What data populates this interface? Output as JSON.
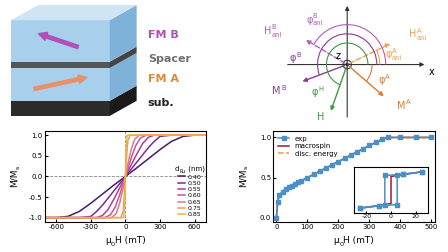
{
  "schematic": {
    "layers": [
      {
        "label": "FM B",
        "color": "#b050b8"
      },
      {
        "label": "Spacer",
        "color": "#707070"
      },
      {
        "label": "FM A",
        "color": "#e0883a"
      },
      {
        "label": "sub.",
        "color": "#222222"
      }
    ]
  },
  "angle_diagram": {
    "axes": [
      "x",
      "z"
    ],
    "labels": [
      {
        "text": [
          "H",
          {
            "sup": "B",
            "sub": "ani"
          }
        ],
        "color": "#b45cc0"
      },
      {
        "text": [
          "φ",
          {
            "sup": "B",
            "sub": "ani"
          }
        ],
        "color": "#b45cc0"
      },
      {
        "text": [
          "φ",
          {
            "sup": "H"
          }
        ],
        "color": "#3c9a46"
      },
      {
        "text": [
          "φ",
          {
            "sup": "B"
          }
        ],
        "color": "#8a3a98"
      },
      {
        "text": [
          "φ",
          {
            "sup": "A"
          }
        ],
        "color": "#e07a30"
      },
      {
        "text": [
          "H",
          {
            "sup": "A",
            "sub": "ani"
          }
        ],
        "color": "#f0a050"
      },
      {
        "text": [
          "φ",
          {
            "sup": "A",
            "sub": "ani"
          }
        ],
        "color": "#f0a050"
      },
      {
        "text": [
          "M",
          {
            "sup": "B"
          }
        ],
        "color": "#8a3a98"
      },
      {
        "text": [
          "H"
        ],
        "color": "#3c9a46"
      },
      {
        "text": [
          "M",
          {
            "sup": "A"
          }
        ],
        "color": "#e07a30"
      }
    ]
  },
  "chart_data": [
    {
      "type": "line",
      "x_label": [
        "μ",
        {
          "sub": "0"
        },
        "H (mT)"
      ],
      "y_label": [
        "M/M",
        {
          "sub": "s"
        }
      ],
      "legend_title": [
        "d",
        {
          "sub": "Ru"
        },
        " (nm)"
      ],
      "legend": "lower right",
      "xlim": [
        -700,
        700
      ],
      "xticks": [
        -600,
        -300,
        0,
        300,
        600
      ],
      "ylim": [
        -1.1,
        1.1
      ],
      "yticks": [
        -1.0,
        -0.5,
        0.0,
        0.5,
        1.0
      ],
      "hlines": [
        0
      ],
      "vlines": [
        0
      ],
      "series": [
        {
          "name": "0.40",
          "color": "#4a1a6a",
          "line_style": "solid",
          "x": [
            -700,
            -600,
            -500,
            -400,
            -300,
            -200,
            -100,
            0,
            100,
            200,
            300,
            400,
            500,
            600,
            700
          ],
          "values": [
            -1,
            -1,
            -0.97,
            -0.85,
            -0.65,
            -0.43,
            -0.21,
            0,
            0.21,
            0.43,
            0.65,
            0.85,
            0.97,
            1,
            1
          ]
        },
        {
          "name": "0.50",
          "color": "#7b2d8e",
          "line_style": "solid",
          "x": [
            -700,
            -400,
            -300,
            -250,
            -200,
            -100,
            0,
            100,
            200,
            250,
            300,
            400,
            700
          ],
          "values": [
            -1,
            -1,
            -0.97,
            -0.85,
            -0.7,
            -0.35,
            0,
            0.35,
            0.7,
            0.85,
            0.97,
            1,
            1
          ]
        },
        {
          "name": "0.55",
          "color": "#a8409a",
          "line_style": "solid",
          "x": [
            -700,
            -250,
            -200,
            -150,
            -100,
            -50,
            0,
            50,
            100,
            150,
            200,
            250,
            700
          ],
          "values": [
            -1,
            -1,
            -0.95,
            -0.8,
            -0.55,
            -0.28,
            0,
            0.28,
            0.55,
            0.8,
            0.95,
            1,
            1
          ]
        },
        {
          "name": "0.60",
          "color": "#c8549a",
          "line_style": "solid",
          "x": [
            -700,
            -180,
            -130,
            -90,
            -50,
            -25,
            0,
            25,
            50,
            90,
            130,
            180,
            700
          ],
          "values": [
            -1,
            -1,
            -0.93,
            -0.75,
            -0.45,
            -0.22,
            0,
            0.22,
            0.45,
            0.75,
            0.93,
            1,
            1
          ]
        },
        {
          "name": "0.65",
          "color": "#de7a86",
          "line_style": "solid",
          "x": [
            -700,
            -120,
            -80,
            -50,
            -25,
            0,
            25,
            50,
            80,
            120,
            700
          ],
          "values": [
            -1,
            -1,
            -0.9,
            -0.65,
            -0.35,
            0,
            0.35,
            0.65,
            0.9,
            1,
            1
          ]
        },
        {
          "name": "0.75",
          "color": "#ec9a60",
          "line_style": "solid",
          "x": [
            -700,
            -40,
            -20,
            -5,
            0,
            5,
            20,
            40,
            700
          ],
          "values": [
            -1,
            -1,
            -0.85,
            -0.3,
            0,
            0.3,
            0.85,
            1,
            1
          ]
        },
        {
          "name": "0.85",
          "color": "#f2b040",
          "line_style": "solid",
          "x": [
            -700,
            -15,
            -3,
            0,
            3,
            15,
            700
          ],
          "values": [
            -1,
            -1,
            -0.5,
            0,
            0.5,
            1,
            1
          ]
        }
      ]
    },
    {
      "type": "line",
      "x_label": [
        "μ",
        {
          "sub": "0"
        },
        "H (mT)"
      ],
      "y_label": [
        "M/M",
        {
          "sub": "s"
        }
      ],
      "legend": "upper left",
      "xlim": [
        -10,
        510
      ],
      "xticks": [
        0,
        100,
        200,
        300,
        400,
        500
      ],
      "ylim": [
        -0.05,
        1.08
      ],
      "yticks": [
        0.0,
        0.5,
        1.0
      ],
      "series": [
        {
          "name": "exp",
          "color": "#4a90c8",
          "marker": "square",
          "line_style": "solid",
          "x": [
            0,
            5,
            10,
            20,
            30,
            40,
            50,
            60,
            70,
            80,
            100,
            120,
            140,
            160,
            180,
            200,
            220,
            240,
            260,
            280,
            300,
            320,
            340,
            360,
            400,
            450,
            500
          ],
          "values": [
            0.0,
            0.2,
            0.28,
            0.32,
            0.36,
            0.38,
            0.4,
            0.42,
            0.44,
            0.46,
            0.5,
            0.54,
            0.58,
            0.62,
            0.66,
            0.7,
            0.74,
            0.78,
            0.82,
            0.86,
            0.9,
            0.94,
            0.98,
            1,
            1,
            1,
            1
          ]
        },
        {
          "name": "macrospin",
          "color": "#a01830",
          "line_style": "solid",
          "x": [
            0,
            5,
            20,
            50,
            100,
            150,
            200,
            250,
            300,
            350,
            360,
            400,
            500
          ],
          "values": [
            0.0,
            0.25,
            0.33,
            0.4,
            0.5,
            0.6,
            0.7,
            0.8,
            0.9,
            0.99,
            1,
            1,
            1
          ]
        },
        {
          "name": "disc. energy",
          "color": "#f0a030",
          "line_style": "dashed",
          "x": [
            0,
            5,
            20,
            50,
            100,
            150,
            200,
            250,
            300,
            350,
            360,
            400,
            500
          ],
          "values": [
            0.0,
            0.24,
            0.32,
            0.4,
            0.5,
            0.6,
            0.7,
            0.8,
            0.9,
            0.99,
            1,
            1,
            1
          ]
        }
      ],
      "inset": {
        "xlim": [
          -30,
          30
        ],
        "xticks": [
          -20,
          0,
          20
        ],
        "ylim": [
          -0.5,
          0.5
        ],
        "tick_labels": "x",
        "series": [
          {
            "name": "exp",
            "color": "#4a90c8",
            "marker": "square",
            "line_style": "solid",
            "x": [
              -25,
              -10,
              5,
              5,
              10,
              25
            ],
            "values": [
              -0.4,
              -0.35,
              -0.32,
              0.32,
              0.35,
              0.4
            ]
          },
          {
            "name": "exp",
            "color": "#4a90c8",
            "marker": "square",
            "line_style": "solid",
            "x": [
              25,
              10,
              -5,
              -5,
              -10,
              -25
            ],
            "values": [
              0.4,
              0.35,
              0.32,
              -0.32,
              -0.35,
              -0.4
            ]
          },
          {
            "name": "macrospin",
            "color": "#a01830",
            "line_style": "solid",
            "x": [
              -25,
              0,
              0,
              25
            ],
            "values": [
              -0.4,
              -0.3,
              0.3,
              0.4
            ]
          }
        ]
      }
    }
  ]
}
